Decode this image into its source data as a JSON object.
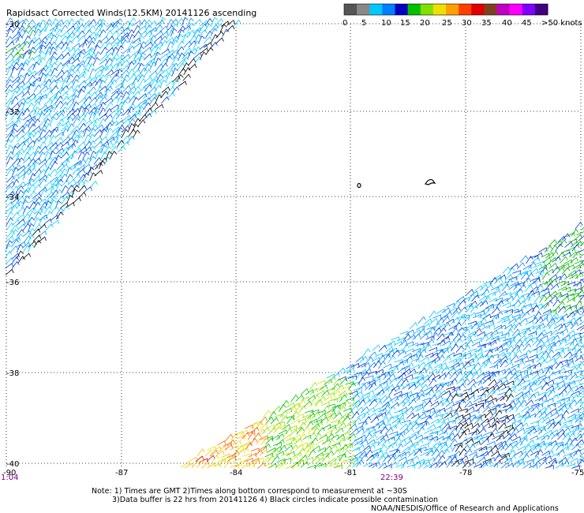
{
  "title": "Rapidsact Corrected Winds(12.5KM) 20141126 ascending",
  "legend": {
    "labels": [
      "0",
      "5",
      "10",
      "15",
      "20",
      "25",
      "30",
      "35",
      "40",
      "45",
      ">50 knots"
    ],
    "colors": [
      "#555555",
      "#888888",
      "#00c8ff",
      "#0080ff",
      "#0000c0",
      "#00c000",
      "#80e000",
      "#f0e000",
      "#ffa000",
      "#ff4000",
      "#e00000",
      "#804020",
      "#c000c0",
      "#ff00ff",
      "#8000ff",
      "#400080"
    ]
  },
  "lat_labels": [
    "-30",
    "-32",
    "-34",
    "-36",
    "-38",
    "-40"
  ],
  "lon_labels": [
    "-90",
    "-87",
    "-84",
    "-81",
    "-78",
    "-75"
  ],
  "time_labels": [
    "1:04",
    "22:39"
  ],
  "notes": {
    "line1": "Note: 1) Times are GMT 2)Times along bottom correspond to measurement at ~30S",
    "line2": "3)Data buffer is 22 hrs from 20141126 4) Black circles indicate possible contamination",
    "line3": "NOAA/NESDIS/Office of Research and Applications"
  }
}
